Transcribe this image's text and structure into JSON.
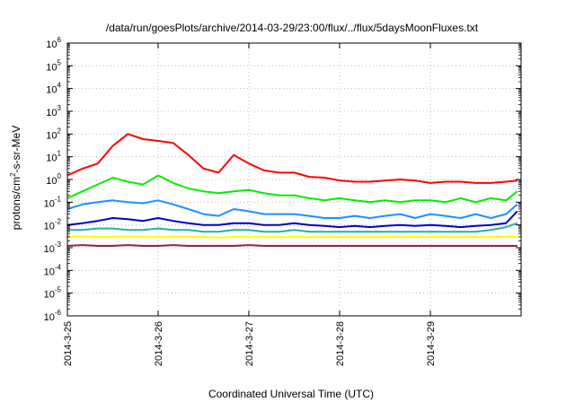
{
  "chart_data": {
    "type": "line",
    "title": "/data/run/goesPlots/archive/2014-03-29/23:00/flux/../flux/5daysMoonFluxes.txt",
    "xlabel": "Coordinated Universal Time (UTC)",
    "ylabel": "protons/cm²-s-sr-MeV",
    "ylabel_parts": {
      "base": "protons/cm",
      "sup": "2",
      "rest": "-s-sr-MeV"
    },
    "yscale": "log",
    "ylim": [
      1e-06,
      1000000.0
    ],
    "yticks": [
      {
        "base": "10",
        "exp": "-6"
      },
      {
        "base": "10",
        "exp": "-5"
      },
      {
        "base": "10",
        "exp": "-4"
      },
      {
        "base": "10",
        "exp": "-3"
      },
      {
        "base": "10",
        "exp": "-2"
      },
      {
        "base": "10",
        "exp": "-1"
      },
      {
        "base": "10",
        "exp": "0"
      },
      {
        "base": "10",
        "exp": "1"
      },
      {
        "base": "10",
        "exp": "2"
      },
      {
        "base": "10",
        "exp": "3"
      },
      {
        "base": "10",
        "exp": "4"
      },
      {
        "base": "10",
        "exp": "5"
      },
      {
        "base": "10",
        "exp": "6"
      }
    ],
    "xlim": [
      "2014-03-25 00:00",
      "2014-03-29 23:00"
    ],
    "xticks": [
      "2014-3-25",
      "2014-3-26",
      "2014-3-27",
      "2014-3-28",
      "2014-3-29"
    ],
    "grid": true,
    "x": [
      "2014-03-25 00:00",
      "2014-03-25 04:00",
      "2014-03-25 08:00",
      "2014-03-25 12:00",
      "2014-03-25 16:00",
      "2014-03-25 20:00",
      "2014-03-26 00:00",
      "2014-03-26 04:00",
      "2014-03-26 08:00",
      "2014-03-26 12:00",
      "2014-03-26 16:00",
      "2014-03-26 20:00",
      "2014-03-27 00:00",
      "2014-03-27 04:00",
      "2014-03-27 08:00",
      "2014-03-27 12:00",
      "2014-03-27 16:00",
      "2014-03-27 20:00",
      "2014-03-28 00:00",
      "2014-03-28 04:00",
      "2014-03-28 08:00",
      "2014-03-28 12:00",
      "2014-03-28 16:00",
      "2014-03-28 20:00",
      "2014-03-29 00:00",
      "2014-03-29 04:00",
      "2014-03-29 08:00",
      "2014-03-29 12:00",
      "2014-03-29 16:00",
      "2014-03-29 20:00",
      "2014-03-29 23:00"
    ],
    "series": [
      {
        "color": "#ff0000",
        "values": [
          1.5,
          3,
          5,
          30,
          100,
          60,
          50,
          40,
          12,
          3,
          2,
          12,
          5,
          2.5,
          2,
          2,
          1.3,
          1.2,
          0.9,
          0.8,
          0.8,
          0.9,
          1,
          0.9,
          0.7,
          0.8,
          0.8,
          0.7,
          0.7,
          0.8,
          0.9
        ]
      },
      {
        "color": "#00ee00",
        "values": [
          0.15,
          0.3,
          0.6,
          1.2,
          0.8,
          0.6,
          1.5,
          0.7,
          0.4,
          0.3,
          0.25,
          0.3,
          0.35,
          0.25,
          0.2,
          0.2,
          0.15,
          0.12,
          0.15,
          0.12,
          0.1,
          0.12,
          0.1,
          0.12,
          0.12,
          0.1,
          0.15,
          0.1,
          0.15,
          0.12,
          0.3
        ]
      },
      {
        "color": "#1e90ff",
        "values": [
          0.05,
          0.08,
          0.1,
          0.12,
          0.1,
          0.09,
          0.12,
          0.08,
          0.05,
          0.03,
          0.025,
          0.05,
          0.04,
          0.03,
          0.03,
          0.03,
          0.025,
          0.02,
          0.02,
          0.025,
          0.02,
          0.025,
          0.03,
          0.02,
          0.03,
          0.025,
          0.02,
          0.03,
          0.02,
          0.03,
          0.08
        ]
      },
      {
        "color": "#0000cd",
        "values": [
          0.01,
          0.012,
          0.015,
          0.02,
          0.018,
          0.015,
          0.02,
          0.015,
          0.012,
          0.01,
          0.01,
          0.012,
          0.012,
          0.01,
          0.01,
          0.012,
          0.01,
          0.009,
          0.008,
          0.009,
          0.008,
          0.009,
          0.01,
          0.009,
          0.01,
          0.009,
          0.008,
          0.009,
          0.01,
          0.012,
          0.04
        ]
      },
      {
        "color": "#20b2aa",
        "values": [
          0.006,
          0.006,
          0.007,
          0.007,
          0.006,
          0.006,
          0.007,
          0.006,
          0.006,
          0.005,
          0.005,
          0.006,
          0.006,
          0.005,
          0.005,
          0.006,
          0.005,
          0.005,
          0.005,
          0.005,
          0.005,
          0.005,
          0.005,
          0.005,
          0.005,
          0.005,
          0.005,
          0.005,
          0.006,
          0.008,
          0.012
        ]
      },
      {
        "color": "#ffff00",
        "values": [
          0.003,
          0.0032,
          0.003,
          0.003,
          0.0031,
          0.003,
          0.003,
          0.003,
          0.003,
          0.003,
          0.0028,
          0.003,
          0.003,
          0.003,
          0.003,
          0.003,
          0.003,
          0.003,
          0.003,
          0.003,
          0.003,
          0.003,
          0.003,
          0.003,
          0.003,
          0.003,
          0.003,
          0.003,
          0.003,
          0.003,
          0.003
        ]
      },
      {
        "color": "#8b2252",
        "values": [
          0.0012,
          0.0013,
          0.0012,
          0.0012,
          0.0013,
          0.0012,
          0.0012,
          0.0013,
          0.0012,
          0.0012,
          0.0012,
          0.0012,
          0.0013,
          0.0012,
          0.0012,
          0.0012,
          0.0012,
          0.0012,
          0.0012,
          0.0012,
          0.0012,
          0.0012,
          0.0012,
          0.0012,
          0.0012,
          0.0012,
          0.0012,
          0.0012,
          0.0012,
          0.0012,
          0.0012
        ]
      }
    ]
  }
}
